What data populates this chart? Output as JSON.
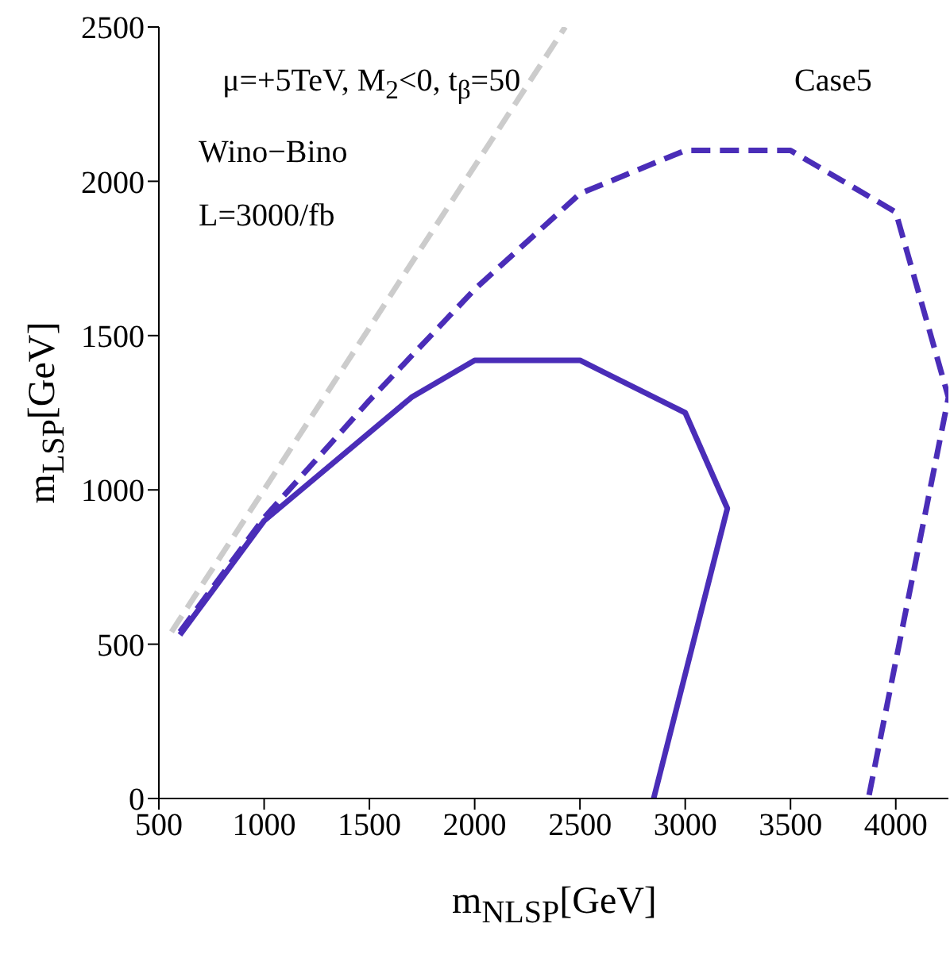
{
  "chart_data": {
    "type": "line",
    "xlabel": "m$_{NLSP}$[GeV]",
    "ylabel": "m$_{LSP}$[GeV]",
    "xlim": [
      500,
      4250
    ],
    "xticks": [
      500,
      1000,
      1500,
      2000,
      2500,
      3000,
      3500,
      4000
    ],
    "ylim": [
      0,
      2500
    ],
    "yticks": [
      0,
      500,
      1000,
      1500,
      2000,
      2500
    ],
    "grid": false,
    "legend": false,
    "marker": "none",
    "annotations": [
      "μ=+5TeV, M$_{2}$<0, t$_{β}$=50",
      "Wino−Bino",
      "L=3000/fb",
      "Case5"
    ],
    "series": [
      {
        "color": "#cccccc",
        "line_style": "dashed",
        "x": [
          560,
          2430
        ],
        "values": [
          540,
          2500
        ]
      },
      {
        "color": "#4a2db8",
        "line_style": "solid",
        "x": [
          600,
          1000,
          1700,
          2000,
          2500,
          3000,
          3200,
          2850
        ],
        "values": [
          530,
          900,
          1300,
          1420,
          1420,
          1250,
          940,
          0
        ]
      },
      {
        "color": "#4a2db8",
        "line_style": "dashed",
        "x": [
          600,
          1000,
          1500,
          2000,
          2500,
          3000,
          3500,
          4000,
          4250,
          3870
        ],
        "values": [
          540,
          910,
          1290,
          1650,
          1960,
          2100,
          2100,
          1900,
          1300,
          0
        ]
      }
    ]
  }
}
